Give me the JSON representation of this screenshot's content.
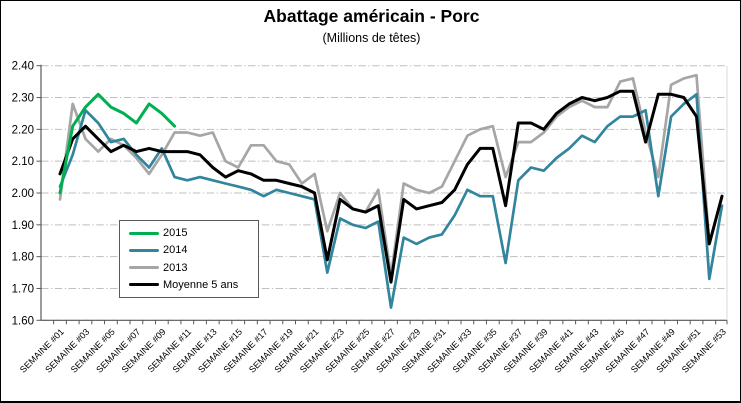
{
  "title": "Abattage américain - Porc",
  "subtitle": "(Millions de têtes)",
  "chart_data": {
    "type": "line",
    "title": "Abattage américain - Porc",
    "subtitle": "(Millions de têtes)",
    "units": "Millions de têtes",
    "x_axis": {
      "weeks_total": 53,
      "label_every": 2,
      "labels": [
        "SEMAINE #01",
        "SEMAINE #03",
        "SEMAINE #05",
        "SEMAINE #07",
        "SEMAINE #09",
        "SEMAINE #11",
        "SEMAINE #13",
        "SEMAINE #15",
        "SEMAINE #17",
        "SEMAINE #19",
        "SEMAINE #21",
        "SEMAINE #23",
        "SEMAINE #25",
        "SEMAINE #27",
        "SEMAINE #29",
        "SEMAINE #31",
        "SEMAINE #33",
        "SEMAINE #35",
        "SEMAINE #37",
        "SEMAINE #39",
        "SEMAINE #41",
        "SEMAINE #43",
        "SEMAINE #45",
        "SEMAINE #47",
        "SEMAINE #49",
        "SEMAINE #51",
        "SEMAINE #53"
      ]
    },
    "y_axis": {
      "min": 1.6,
      "max": 2.4,
      "ticks": [
        "2.40",
        "2.30",
        "2.20",
        "2.10",
        "2.00",
        "1.90",
        "1.80",
        "1.70",
        "1.60"
      ]
    },
    "grid": {
      "horizontal": true,
      "style": "dash-dot",
      "color": "#BFBFBF"
    },
    "legend_position": "middle-left",
    "series": [
      {
        "name": "2015",
        "color": "#00B050",
        "start_week": 1,
        "values": [
          2.0,
          2.21,
          2.27,
          2.31,
          2.27,
          2.25,
          2.22,
          2.28,
          2.25,
          2.21
        ]
      },
      {
        "name": "2014",
        "color": "#31859C",
        "start_week": 1,
        "values": [
          2.02,
          2.12,
          2.26,
          2.22,
          2.16,
          2.17,
          2.12,
          2.08,
          2.14,
          2.05,
          2.04,
          2.05,
          2.04,
          2.03,
          2.02,
          2.01,
          1.99,
          2.01,
          2.0,
          1.99,
          1.98,
          1.75,
          1.92,
          1.9,
          1.89,
          1.91,
          1.64,
          1.86,
          1.84,
          1.86,
          1.87,
          1.93,
          2.01,
          1.99,
          1.99,
          1.78,
          2.04,
          2.08,
          2.07,
          2.11,
          2.14,
          2.18,
          2.16,
          2.21,
          2.24,
          2.24,
          2.26,
          1.99,
          2.24,
          2.28,
          2.31,
          1.73,
          1.96
        ]
      },
      {
        "name": "2013",
        "color": "#A6A6A6",
        "start_week": 1,
        "values": [
          1.98,
          2.28,
          2.17,
          2.13,
          2.17,
          2.15,
          2.11,
          2.06,
          2.12,
          2.19,
          2.19,
          2.18,
          2.19,
          2.1,
          2.08,
          2.15,
          2.15,
          2.1,
          2.09,
          2.03,
          2.06,
          1.88,
          2.0,
          1.95,
          1.94,
          2.01,
          1.74,
          2.03,
          2.01,
          2.0,
          2.02,
          2.1,
          2.18,
          2.2,
          2.21,
          2.05,
          2.16,
          2.16,
          2.19,
          2.24,
          2.27,
          2.29,
          2.27,
          2.27,
          2.35,
          2.36,
          2.19,
          2.05,
          2.34,
          2.36,
          2.37,
          1.84,
          1.99
        ]
      },
      {
        "name": "Moyenne 5 ans",
        "color": "#000000",
        "start_week": 1,
        "values": [
          2.06,
          2.17,
          2.21,
          2.17,
          2.13,
          2.15,
          2.13,
          2.14,
          2.13,
          2.13,
          2.13,
          2.12,
          2.08,
          2.05,
          2.07,
          2.06,
          2.04,
          2.04,
          2.03,
          2.02,
          2.0,
          1.79,
          1.98,
          1.95,
          1.94,
          1.96,
          1.72,
          1.98,
          1.95,
          1.96,
          1.97,
          2.01,
          2.09,
          2.14,
          2.14,
          1.96,
          2.22,
          2.22,
          2.2,
          2.25,
          2.28,
          2.3,
          2.29,
          2.3,
          2.32,
          2.32,
          2.16,
          2.31,
          2.31,
          2.3,
          2.24,
          1.84,
          1.99
        ]
      }
    ]
  }
}
